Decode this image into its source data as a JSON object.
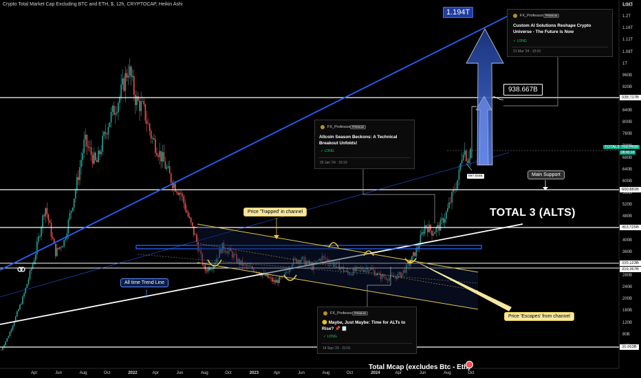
{
  "header": {
    "title": "Crypto Total Market Cap Excluding BTC and ETH, $, 12h, CRYPTOCAP, Heikin Ashi",
    "currency": "USD"
  },
  "annotations": {
    "top_target": "1.194T",
    "target_938": "938.667B",
    "small_marker": "697.834B",
    "main_support": "Main Support",
    "total3": "TOTAL 3 (ALTS)",
    "trapped": "Price 'Trapped' in channel",
    "escapes": "Price 'Escapes' from channel",
    "trend_line": "All time Trend Line",
    "bottom_caption": "Total Mcap (excludes Btc - Eth)"
  },
  "ideas": [
    {
      "author": "FX_Professor",
      "badge": "PREMIUM",
      "title": "Custom AI Solutions Reshape Crypto Universe - The Future is Now",
      "direction": "✓ LONG",
      "time": "21 Mar '24 · 15:01"
    },
    {
      "author": "FX_Professor",
      "badge": "PREMIUM",
      "title": "Altcoin Season Beckons: A Technical Breakout Unfolds!",
      "direction": "✓ LONG",
      "time": "20 Jan '24 · 15:16"
    },
    {
      "author": "FX_Professor",
      "badge": "PREMIUM",
      "title": "🙂 Maybe, Just Maybe: Time for ALTs to Rise? 📌 🗒️",
      "direction": "✓ LONG",
      "time": "14 Sep '23 · 21:01"
    }
  ],
  "price_labels": {
    "ticker": "TOTAL3",
    "value": "751.745B",
    "countdown": "08:45:14",
    "levels": [
      "938.317B",
      "600.881B",
      "463.825B",
      "335.123B",
      "319.367B",
      "35.663B"
    ]
  },
  "colors": {
    "background": "#000000",
    "bull": "#26a69a",
    "bear": "#ef5350",
    "trend_blue": "#2962ff",
    "channel_yellow": "#e6c84a",
    "level_white": "#ffffff",
    "arrow_blue": "#1e3a8a",
    "accent_teal": "#0fa88a"
  },
  "chart_data": {
    "type": "candlestick",
    "style": "Heikin Ashi",
    "interval": "12h",
    "x_ticks": [
      "Apr",
      "Jun",
      "Aug",
      "Oct",
      "2022",
      "Apr",
      "Jun",
      "Aug",
      "Oct",
      "2023",
      "Apr",
      "Jun",
      "Aug",
      "Oct",
      "2024",
      "Apr",
      "Jun",
      "Aug",
      "Oct"
    ],
    "y_ticks": [
      "1.24T",
      "1.2T",
      "1.16T",
      "1.12T",
      "1.08T",
      "1T",
      "960B",
      "920B",
      "880B",
      "840B",
      "800B",
      "760B",
      "720B",
      "680B",
      "640B",
      "600B",
      "560B",
      "520B",
      "480B",
      "440B",
      "400B",
      "360B",
      "320B",
      "280B",
      "240B",
      "200B",
      "160B",
      "120B",
      "80B",
      "40B"
    ],
    "y_range_billions": [
      20,
      1260
    ],
    "price_path_billions": [
      [
        2021.05,
        70
      ],
      [
        2021.1,
        120
      ],
      [
        2021.2,
        250
      ],
      [
        2021.28,
        390
      ],
      [
        2021.35,
        560
      ],
      [
        2021.42,
        400
      ],
      [
        2021.48,
        440
      ],
      [
        2021.56,
        620
      ],
      [
        2021.62,
        780
      ],
      [
        2021.7,
        700
      ],
      [
        2021.78,
        840
      ],
      [
        2021.86,
        930
      ],
      [
        2021.92,
        1030
      ],
      [
        2021.97,
        920
      ],
      [
        2022.02,
        890
      ],
      [
        2022.08,
        790
      ],
      [
        2022.15,
        720
      ],
      [
        2022.22,
        640
      ],
      [
        2022.28,
        600
      ],
      [
        2022.33,
        520
      ],
      [
        2022.38,
        450
      ],
      [
        2022.44,
        340
      ],
      [
        2022.5,
        360
      ],
      [
        2022.56,
        420
      ],
      [
        2022.62,
        400
      ],
      [
        2022.68,
        365
      ],
      [
        2022.74,
        350
      ],
      [
        2022.8,
        340
      ],
      [
        2022.86,
        320
      ],
      [
        2022.92,
        300
      ],
      [
        2022.98,
        315
      ],
      [
        2023.04,
        370
      ],
      [
        2023.1,
        380
      ],
      [
        2023.18,
        350
      ],
      [
        2023.24,
        385
      ],
      [
        2023.3,
        370
      ],
      [
        2023.36,
        355
      ],
      [
        2023.42,
        330
      ],
      [
        2023.48,
        340
      ],
      [
        2023.56,
        350
      ],
      [
        2023.64,
        320
      ],
      [
        2023.72,
        315
      ],
      [
        2023.78,
        325
      ],
      [
        2023.84,
        360
      ],
      [
        2023.9,
        420
      ],
      [
        2023.95,
        495
      ],
      [
        2024.0,
        470
      ],
      [
        2024.05,
        490
      ],
      [
        2024.1,
        540
      ],
      [
        2024.14,
        600
      ],
      [
        2024.18,
        660
      ],
      [
        2024.21,
        760
      ],
      [
        2024.24,
        720
      ],
      [
        2024.26,
        752
      ]
    ],
    "horizontal_levels_billions": [
      938.317,
      600.881,
      463.825,
      335.123,
      319.367,
      35.663
    ],
    "targets_billions": [
      1194,
      938.667,
      697.834
    ]
  }
}
